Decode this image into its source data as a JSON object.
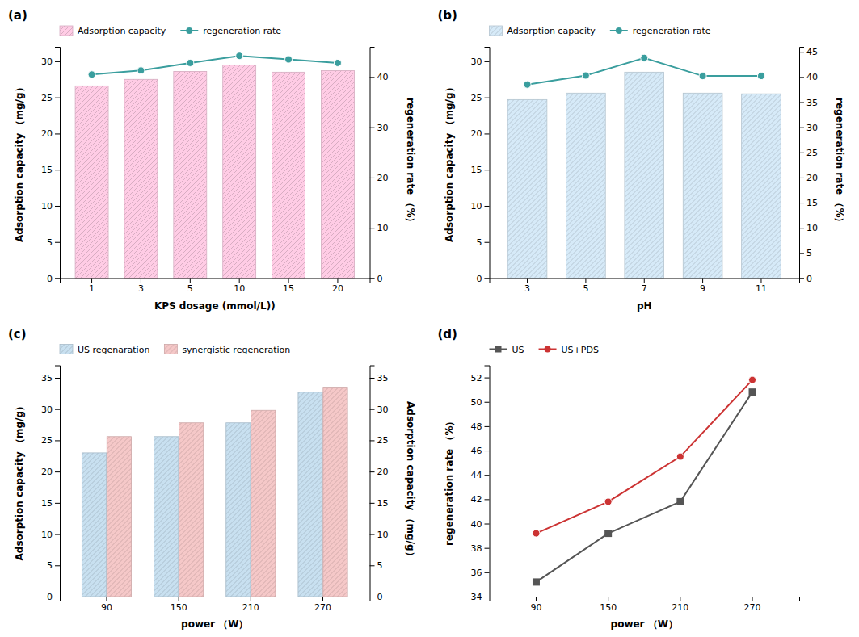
{
  "chart_data": [
    {
      "type": "bar",
      "title": "(a)",
      "xlabel": "KPS dosage (mmol/L))",
      "ylabel": "Adsorption capacity （mg/g）",
      "y2label": "regeneration rate （%）",
      "categories": [
        "1",
        "3",
        "5",
        "10",
        "15",
        "20"
      ],
      "series": [
        {
          "name": "Adsorption capacity",
          "type": "bar",
          "color": "#FFCCE5",
          "values": [
            26.6,
            27.5,
            28.6,
            29.5,
            28.5,
            28.7
          ]
        },
        {
          "name": "regeneration rate",
          "type": "line",
          "axis": "y2",
          "color": "#3A9E9E",
          "marker": "circle",
          "values": [
            40.5,
            41.3,
            42.8,
            44.2,
            43.5,
            42.8
          ]
        }
      ],
      "ylim": [
        0,
        32
      ],
      "yticks": [
        0,
        5,
        10,
        15,
        20,
        25,
        30
      ],
      "y2lim": [
        0,
        46
      ],
      "y2ticks": [
        0,
        10,
        20,
        30,
        40
      ],
      "legend": "upper left",
      "grid": false
    },
    {
      "type": "bar",
      "title": "(b)",
      "xlabel": "pH",
      "ylabel": "Adsorption capacity （mg/g）",
      "y2label": "regeneration rate （%）",
      "categories": [
        "3",
        "5",
        "7",
        "9",
        "11"
      ],
      "series": [
        {
          "name": "Adsorption capacity",
          "type": "bar",
          "color": "#D6EAF8",
          "values": [
            24.7,
            25.6,
            28.5,
            25.6,
            25.5
          ]
        },
        {
          "name": "regeneration rate",
          "type": "line",
          "axis": "y2",
          "color": "#3A9E9E",
          "marker": "circle",
          "values": [
            38.5,
            40.3,
            43.8,
            40.2,
            40.2
          ]
        }
      ],
      "ylim": [
        0,
        32
      ],
      "yticks": [
        0,
        5,
        10,
        15,
        20,
        25,
        30
      ],
      "y2lim": [
        0,
        46
      ],
      "y2ticks": [
        0,
        5,
        10,
        15,
        20,
        25,
        30,
        35,
        40,
        45
      ],
      "legend": "upper left",
      "grid": false
    },
    {
      "type": "bar",
      "title": "(c)",
      "xlabel": "power （W）",
      "ylabel": "Adsorption capacity （mg/g）",
      "y2label": "Adsorption capacity （mg/g）",
      "categories": [
        "90",
        "150",
        "210",
        "270"
      ],
      "series": [
        {
          "name": "US regenaration",
          "type": "bar",
          "color": "#C8E0F0",
          "values": [
            23.0,
            25.6,
            27.8,
            32.7
          ]
        },
        {
          "name": "synergistic regeneration",
          "type": "bar",
          "color": "#F5C8C8",
          "values": [
            25.6,
            27.8,
            29.8,
            33.5
          ]
        }
      ],
      "ylim": [
        0,
        37
      ],
      "yticks": [
        0,
        5,
        10,
        15,
        20,
        25,
        30,
        35
      ],
      "y2lim": [
        0,
        37
      ],
      "y2ticks": [
        0,
        5,
        10,
        15,
        20,
        25,
        30,
        35
      ],
      "legend": "upper left",
      "grid": false
    },
    {
      "type": "line",
      "title": "(d)",
      "xlabel": "power （W）",
      "ylabel": "regeneration rate （%）",
      "categories": [
        "90",
        "150",
        "210",
        "270"
      ],
      "series": [
        {
          "name": "US",
          "color": "#555555",
          "marker": "square",
          "values": [
            35.2,
            39.2,
            41.8,
            50.8
          ]
        },
        {
          "name": "US+PDS",
          "color": "#CC3333",
          "marker": "circle",
          "values": [
            39.2,
            41.8,
            45.5,
            51.8
          ]
        }
      ],
      "ylim": [
        34,
        53
      ],
      "yticks": [
        34,
        36,
        38,
        40,
        42,
        44,
        46,
        48,
        50,
        52
      ],
      "legend": "upper left",
      "grid": false
    }
  ]
}
